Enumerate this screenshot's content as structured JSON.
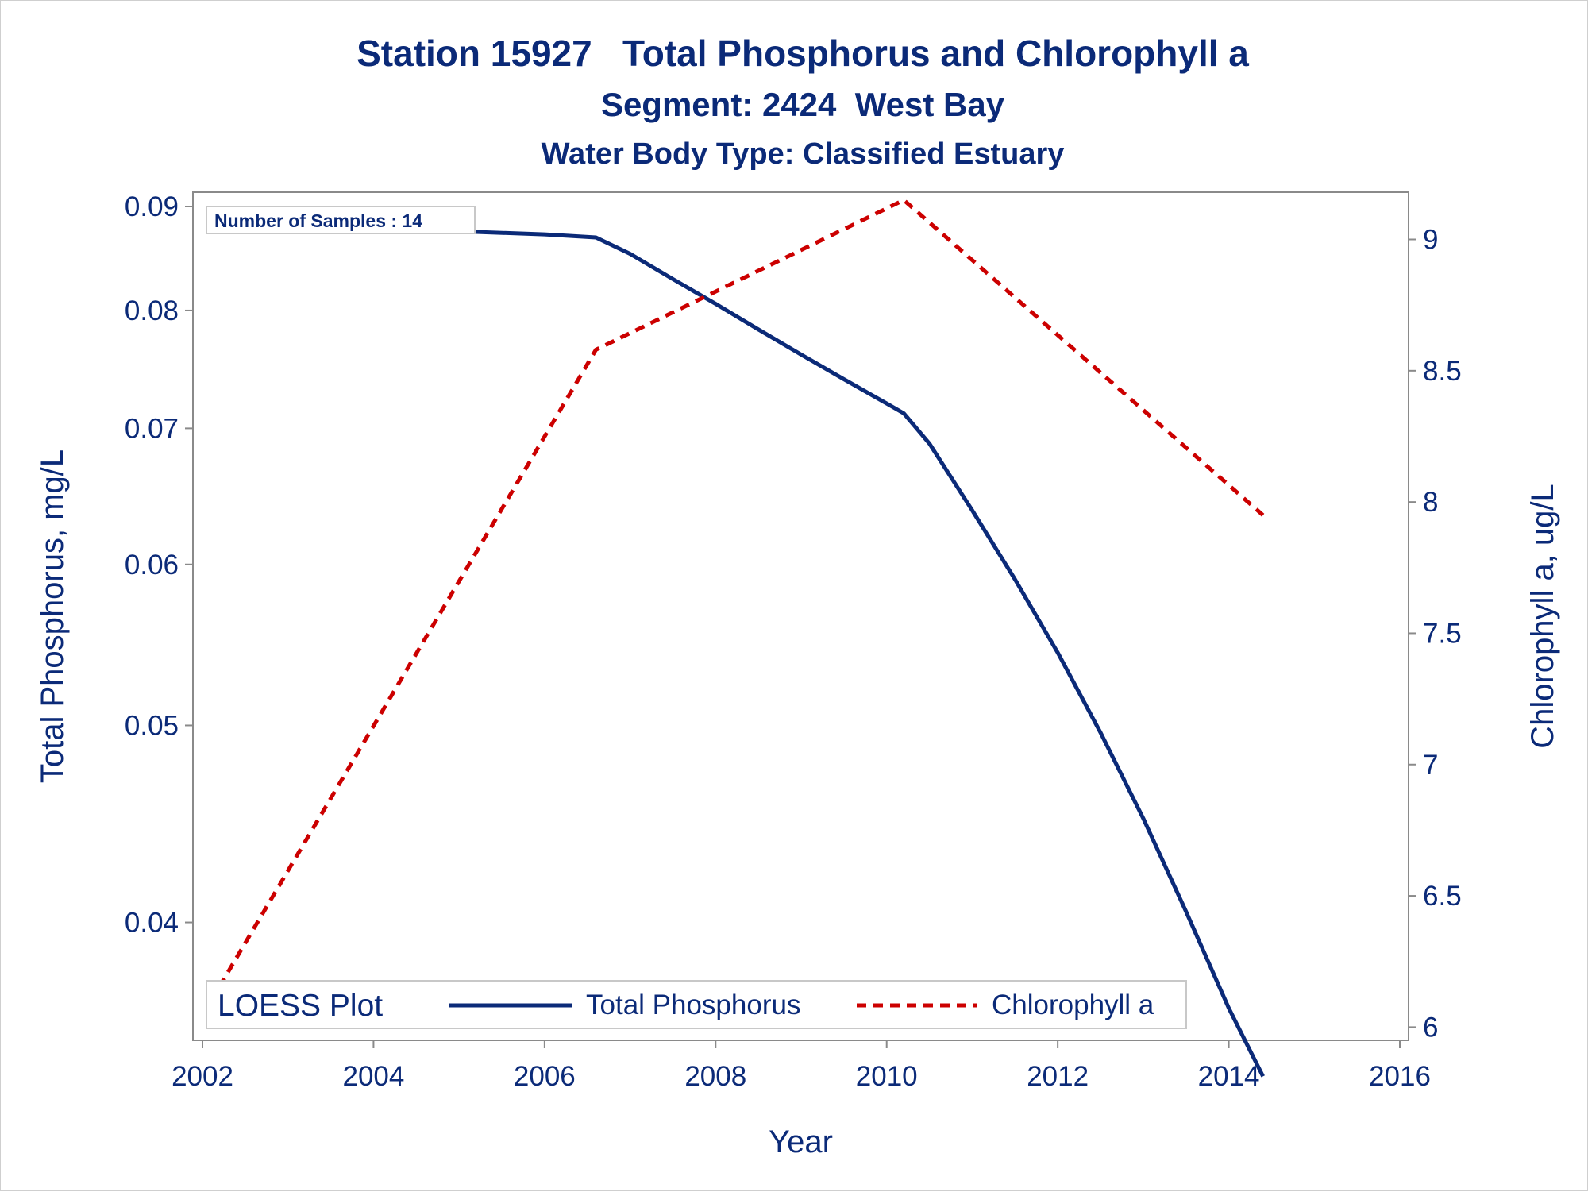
{
  "chart_data": {
    "type": "line",
    "title": "Station 15927   Total Phosphorus and Chlorophyll a",
    "subtitle": "Segment: 2424  West Bay",
    "subtitle2": "Water Body Type: Classified Estuary",
    "xlabel": "Year",
    "ylabel_left": "Total Phosphorus, mg/L",
    "ylabel_right": "Chlorophyll a, ug/L",
    "xlim": [
      2002,
      2016
    ],
    "xticks": [
      "2002",
      "2004",
      "2006",
      "2008",
      "2010",
      "2012",
      "2014",
      "2016"
    ],
    "ylim_left": [
      0.035,
      0.09
    ],
    "yscale_left": "log",
    "yticks_left": [
      "0.04",
      "0.05",
      "0.06",
      "0.07",
      "0.08",
      "0.09"
    ],
    "ylim_right": [
      5.98,
      9.18
    ],
    "yticks_right": [
      "6",
      "6.5",
      "7",
      "7.5",
      "8",
      "8.5",
      "9"
    ],
    "annotation": "Number of Samples : 14",
    "legend": {
      "title": "LOESS Plot",
      "position": "bottom-left",
      "entries": [
        "Total Phosphorus",
        "Chlorophyll a"
      ]
    },
    "series": [
      {
        "name": "Total Phosphorus",
        "axis": "left",
        "color": "#0b2a78",
        "style": "solid",
        "x": [
          2002.1,
          2003,
          2004,
          2005,
          2006,
          2006.6,
          2007,
          2007.5,
          2008,
          2008.5,
          2009,
          2009.5,
          2010,
          2010.2,
          2010.5,
          2011,
          2011.5,
          2012,
          2012.5,
          2013,
          2013.5,
          2014,
          2014.4
        ],
        "y": [
          0.0885,
          0.0882,
          0.0878,
          0.0875,
          0.0872,
          0.0869,
          0.0853,
          0.0829,
          0.0806,
          0.0783,
          0.0761,
          0.074,
          0.072,
          0.0712,
          0.0688,
          0.0638,
          0.059,
          0.0543,
          0.0496,
          0.045,
          0.0405,
          0.0363,
          0.0336
        ]
      },
      {
        "name": "Chlorophyll a",
        "axis": "right",
        "color": "#cc0000",
        "style": "dashed",
        "x": [
          2002.1,
          2006.6,
          2010.2,
          2014.4
        ],
        "y": [
          6.1,
          8.58,
          9.15,
          7.95
        ]
      }
    ]
  }
}
